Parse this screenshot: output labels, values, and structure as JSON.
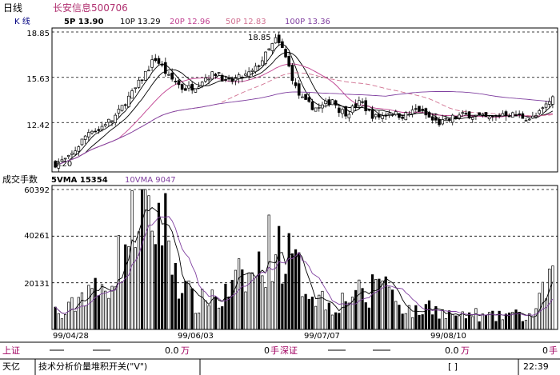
{
  "title_bar": {
    "period": "日线",
    "stock_name": "长安信息",
    "stock_code": "500706"
  },
  "kline": {
    "label": "K  线",
    "ma_values": [
      "5P  13.90",
      "10P  13.29",
      "20P  12.96",
      "50P  12.83",
      "100P  13.36"
    ],
    "ma_colors": [
      "#000000",
      "#000000",
      "#c04090",
      "#d07090",
      "#8040a0"
    ],
    "high_label": "18.85",
    "low_label": "9.20",
    "yaxis": [
      "18.85",
      "15.63",
      "12.42"
    ]
  },
  "volume": {
    "label": "成交手数",
    "ma5": "5VMA  15354",
    "ma10": "10VMA  9047",
    "yaxis": [
      "60392",
      "40261",
      "20131"
    ]
  },
  "dates": [
    "99/04/28",
    "99/06/03",
    "99/07/07",
    "99/08/10"
  ],
  "bottom": {
    "sh_label": "上证",
    "sh_value": "0.0",
    "sh_unit1": "万",
    "sh_hands": "0",
    "sh_unit2": "手",
    "sz_label": "深证",
    "sz_value": "0.0",
    "sz_unit1": "万",
    "sz_hands": "0",
    "sz_unit2": "手"
  },
  "status": {
    "brand": "天亿",
    "message": "技术分析价量堆积开关(\"V\")",
    "bracket": "[        ]",
    "time": "22:39"
  },
  "chart_data": {
    "type": "candlestick",
    "title": "长安信息500706 日线",
    "ylim": [
      9.2,
      18.85
    ],
    "y_ticks": [
      18.85,
      15.63,
      12.42
    ],
    "x_tick_labels": [
      "99/04/28",
      "99/06/03",
      "99/07/07",
      "99/08/10"
    ],
    "price_ma": [
      {
        "name": "5P",
        "value": 13.9
      },
      {
        "name": "10P",
        "value": 13.29
      },
      {
        "name": "20P",
        "value": 12.96
      },
      {
        "name": "50P",
        "value": 12.83
      },
      {
        "name": "100P",
        "value": 13.36
      }
    ],
    "volume_ma": [
      {
        "name": "5VMA",
        "value": 15354
      },
      {
        "name": "10VMA",
        "value": 9047
      }
    ],
    "volume_ylim": [
      0,
      60392
    ],
    "volume_ticks": [
      60392,
      40261,
      20131
    ],
    "close_path": [
      9.5,
      9.7,
      9.9,
      10.6,
      11.3,
      12.0,
      11.8,
      12.4,
      12.6,
      13.2,
      14.0,
      14.6,
      15.4,
      16.2,
      17.0,
      16.4,
      15.6,
      15.3,
      14.8,
      14.9,
      15.1,
      15.6,
      15.8,
      16.0,
      15.2,
      15.4,
      15.6,
      15.8,
      16.1,
      16.8,
      17.5,
      18.3,
      17.6,
      16.2,
      14.6,
      13.9,
      13.6,
      13.4,
      13.7,
      14.1,
      13.3,
      13.1,
      13.5,
      13.9,
      13.2,
      12.8,
      12.9,
      13.2,
      13.0,
      12.9,
      13.1,
      13.4,
      13.0,
      12.6,
      12.4,
      12.5,
      12.8,
      12.9,
      13.0,
      12.9,
      12.8,
      12.7,
      12.8,
      13.1,
      13.0,
      12.9,
      12.8,
      12.7,
      13.0,
      13.6,
      14.2
    ],
    "volume_path": [
      8000,
      5000,
      9000,
      12000,
      16000,
      20000,
      14000,
      18000,
      25000,
      30000,
      38000,
      45000,
      60000,
      42000,
      48000,
      50000,
      38000,
      26000,
      18000,
      14000,
      10000,
      13000,
      16000,
      11000,
      15000,
      18000,
      22000,
      21000,
      24000,
      27000,
      35000,
      38000,
      33000,
      30000,
      26000,
      20000,
      17000,
      15000,
      12000,
      10000,
      12000,
      13000,
      18000,
      14000,
      11000,
      22000,
      26000,
      17000,
      13000,
      10000,
      8000,
      7000,
      9000,
      11000,
      8000,
      6000,
      7000,
      5000,
      6000,
      7000,
      5000,
      6000,
      5000,
      6000,
      7000,
      6000,
      5000,
      6000,
      10000,
      18000,
      26000
    ]
  }
}
